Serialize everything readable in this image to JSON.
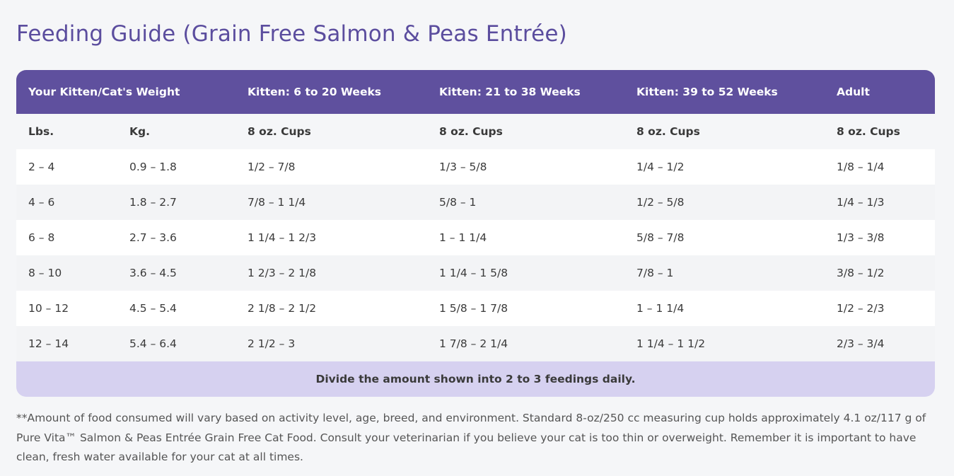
{
  "title": "Feeding Guide (Grain Free Salmon & Peas Entrée)",
  "table": {
    "header": [
      "Your Kitten/Cat's Weight",
      "Kitten: 6 to 20 Weeks",
      "Kitten: 21 to 38 Weeks",
      "Kitten: 39 to 52 Weeks",
      "Adult"
    ],
    "subheader": [
      "Lbs.",
      "Kg.",
      "8 oz. Cups",
      "8 oz. Cups",
      "8 oz. Cups",
      "8 oz. Cups"
    ],
    "rows": [
      [
        "2 – 4",
        "0.9 – 1.8",
        "1/2 – 7/8",
        "1/3 – 5/8",
        "1/4 – 1/2",
        "1/8 – 1/4"
      ],
      [
        "4 – 6",
        "1.8 – 2.7",
        "7/8 – 1 1/4",
        "5/8 – 1",
        "1/2 – 5/8",
        "1/4 – 1/3"
      ],
      [
        "6 – 8",
        "2.7 – 3.6",
        "1 1/4 – 1 2/3",
        "1 – 1 1/4",
        "5/8 – 7/8",
        "1/3 – 3/8"
      ],
      [
        "8 – 10",
        "3.6 – 4.5",
        "1 2/3 – 2 1/8",
        "1 1/4 – 1 5/8",
        "7/8 – 1",
        "3/8 – 1/2"
      ],
      [
        "10 – 12",
        "4.5 – 5.4",
        "2 1/8 – 2 1/2",
        "1 5/8 – 1 7/8",
        "1 – 1 1/4",
        "1/2 – 2/3"
      ],
      [
        "12 – 14",
        "5.4 – 6.4",
        "2 1/2 – 3",
        "1 7/8 – 2 1/4",
        "1 1/4 – 1 1/2",
        "2/3 – 3/4"
      ]
    ],
    "footer": "Divide the amount shown into 2 to 3 feedings daily."
  },
  "note": "**Amount of food consumed will vary based on activity level, age, breed, and environment. Standard 8-oz/250 cc measuring cup holds approximately 4.1 oz/117 g of Pure Vita™ Salmon & Peas Entrée Grain Free Cat Food. Consult your veterinarian if you believe your cat is too thin or overweight. Remember it is important to have clean, fresh water available for your cat at all times."
}
